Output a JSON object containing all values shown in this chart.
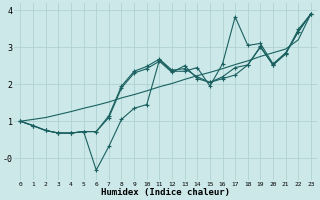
{
  "xlabel": "Humidex (Indice chaleur)",
  "bg_color": "#cce8e8",
  "grid_color": "#aacece",
  "line_color": "#1a6060",
  "xlim": [
    -0.5,
    23.5
  ],
  "ylim": [
    -0.6,
    4.2
  ],
  "ytick_vals": [
    4,
    3,
    2,
    1,
    0
  ],
  "ytick_labels": [
    "4",
    "3",
    "2",
    "1",
    "-0"
  ],
  "xtick_vals": [
    0,
    1,
    2,
    3,
    4,
    5,
    6,
    7,
    8,
    9,
    10,
    11,
    12,
    13,
    14,
    15,
    16,
    17,
    18,
    19,
    20,
    21,
    22,
    23
  ],
  "series_with_markers": [
    [
      1.0,
      0.88,
      0.75,
      0.68,
      0.68,
      0.72,
      -0.32,
      0.32,
      1.05,
      1.35,
      1.45,
      2.65,
      2.35,
      2.35,
      2.45,
      1.95,
      2.55,
      3.82,
      3.05,
      3.1,
      2.55,
      2.85,
      3.42,
      3.9
    ],
    [
      1.0,
      0.88,
      0.75,
      0.68,
      0.68,
      0.72,
      0.72,
      1.1,
      1.9,
      2.3,
      2.42,
      2.62,
      2.32,
      2.5,
      2.15,
      2.05,
      2.15,
      2.25,
      2.52,
      3.0,
      2.52,
      2.82,
      3.42,
      3.9
    ],
    [
      1.0,
      0.88,
      0.75,
      0.68,
      0.68,
      0.72,
      0.72,
      1.15,
      1.95,
      2.35,
      2.48,
      2.68,
      2.38,
      2.42,
      2.2,
      2.05,
      2.2,
      2.45,
      2.52,
      3.02,
      2.52,
      2.82,
      3.48,
      3.9
    ]
  ],
  "trend_line": [
    1.0,
    1.05,
    1.1,
    1.18,
    1.26,
    1.35,
    1.43,
    1.52,
    1.63,
    1.72,
    1.82,
    1.93,
    2.02,
    2.13,
    2.23,
    2.32,
    2.42,
    2.53,
    2.63,
    2.75,
    2.85,
    2.95,
    3.2,
    3.9
  ]
}
